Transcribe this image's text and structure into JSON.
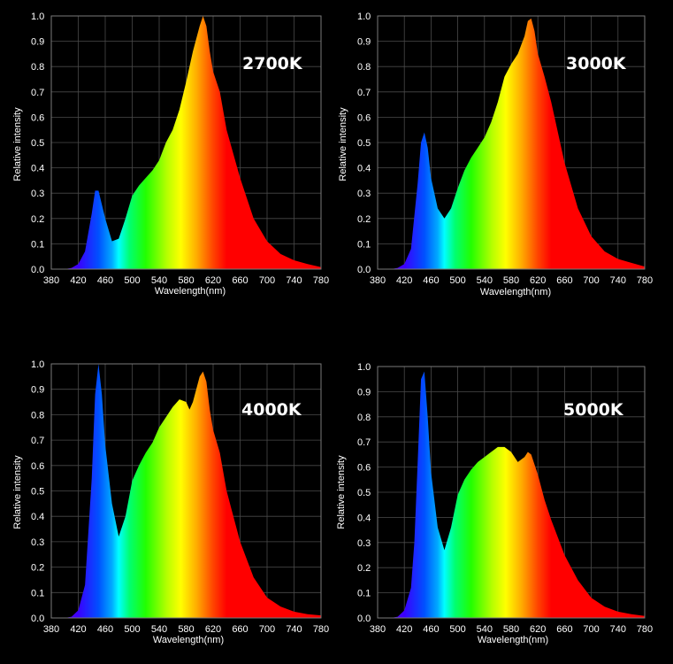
{
  "chart_data": [
    {
      "type": "area",
      "title": "2700K",
      "xlabel": "Wavelength(nm)",
      "ylabel": "Relative intensity",
      "xlim": [
        380,
        780
      ],
      "ylim": [
        0,
        1.0
      ],
      "x_ticks": [
        "380",
        "420",
        "460",
        "500",
        "540",
        "580",
        "620",
        "660",
        "700",
        "740",
        "780"
      ],
      "y_ticks": [
        "0.0",
        "0.1",
        "0.2",
        "0.3",
        "0.4",
        "0.5",
        "0.6",
        "0.7",
        "0.8",
        "0.9",
        "1.0"
      ],
      "grid": true,
      "x": [
        380,
        400,
        410,
        420,
        430,
        440,
        445,
        450,
        460,
        470,
        480,
        490,
        500,
        510,
        520,
        530,
        540,
        550,
        560,
        570,
        580,
        590,
        600,
        605,
        610,
        615,
        620,
        630,
        640,
        660,
        680,
        700,
        720,
        740,
        760,
        780
      ],
      "y": [
        0.0,
        0.0,
        0.005,
        0.02,
        0.07,
        0.22,
        0.31,
        0.31,
        0.2,
        0.11,
        0.12,
        0.2,
        0.29,
        0.33,
        0.36,
        0.39,
        0.43,
        0.5,
        0.55,
        0.63,
        0.74,
        0.86,
        0.96,
        1.0,
        0.96,
        0.86,
        0.78,
        0.7,
        0.55,
        0.36,
        0.2,
        0.11,
        0.06,
        0.035,
        0.02,
        0.008
      ]
    },
    {
      "type": "area",
      "title": "3000K",
      "xlabel": "Wavelength(nm)",
      "ylabel": "Relative intensity",
      "xlim": [
        380,
        780
      ],
      "ylim": [
        0,
        1.0
      ],
      "x_ticks": [
        "380",
        "420",
        "460",
        "500",
        "540",
        "580",
        "620",
        "660",
        "700",
        "740",
        "780"
      ],
      "y_ticks": [
        "0.0",
        "0.1",
        "0.2",
        "0.3",
        "0.4",
        "0.5",
        "0.6",
        "0.7",
        "0.8",
        "0.9",
        "1.0"
      ],
      "grid": true,
      "x": [
        380,
        400,
        410,
        420,
        430,
        440,
        445,
        450,
        455,
        460,
        470,
        480,
        490,
        500,
        510,
        520,
        530,
        540,
        550,
        560,
        570,
        580,
        590,
        600,
        605,
        610,
        615,
        620,
        630,
        640,
        660,
        680,
        700,
        720,
        740,
        760,
        780
      ],
      "y": [
        0.0,
        0.0,
        0.005,
        0.02,
        0.08,
        0.34,
        0.5,
        0.54,
        0.48,
        0.36,
        0.24,
        0.2,
        0.24,
        0.32,
        0.39,
        0.44,
        0.48,
        0.52,
        0.58,
        0.66,
        0.76,
        0.81,
        0.85,
        0.92,
        0.98,
        0.99,
        0.94,
        0.85,
        0.76,
        0.66,
        0.42,
        0.24,
        0.13,
        0.07,
        0.04,
        0.025,
        0.01
      ]
    },
    {
      "type": "area",
      "title": "4000K",
      "xlabel": "Wavelength(nm)",
      "ylabel": "Relative intensity",
      "xlim": [
        380,
        780
      ],
      "ylim": [
        0,
        1.0
      ],
      "x_ticks": [
        "380",
        "420",
        "460",
        "500",
        "540",
        "580",
        "620",
        "660",
        "700",
        "740",
        "780"
      ],
      "y_ticks": [
        "0.0",
        "0.1",
        "0.2",
        "0.3",
        "0.4",
        "0.5",
        "0.6",
        "0.7",
        "0.8",
        "0.9",
        "1.0"
      ],
      "grid": true,
      "x": [
        380,
        400,
        410,
        420,
        430,
        440,
        445,
        450,
        455,
        460,
        470,
        480,
        490,
        500,
        510,
        520,
        530,
        540,
        550,
        560,
        570,
        580,
        585,
        590,
        600,
        605,
        610,
        615,
        620,
        630,
        640,
        660,
        680,
        700,
        720,
        740,
        760,
        780
      ],
      "y": [
        0.0,
        0.0,
        0.005,
        0.03,
        0.13,
        0.55,
        0.88,
        1.0,
        0.88,
        0.68,
        0.45,
        0.32,
        0.4,
        0.54,
        0.6,
        0.65,
        0.69,
        0.75,
        0.79,
        0.83,
        0.86,
        0.85,
        0.82,
        0.85,
        0.95,
        0.97,
        0.93,
        0.82,
        0.74,
        0.65,
        0.5,
        0.3,
        0.16,
        0.08,
        0.045,
        0.025,
        0.015,
        0.01
      ]
    },
    {
      "type": "area",
      "title": "5000K",
      "xlabel": "Wavelength(nm)",
      "ylabel": "Relative intensity",
      "xlim": [
        380,
        780
      ],
      "ylim": [
        0,
        1.0
      ],
      "x_ticks": [
        "380",
        "420",
        "460",
        "500",
        "540",
        "580",
        "620",
        "660",
        "700",
        "740",
        "780"
      ],
      "y_ticks": [
        "0.0",
        "0.1",
        "0.2",
        "0.3",
        "0.4",
        "0.5",
        "0.6",
        "0.7",
        "0.8",
        "0.9",
        "1.0"
      ],
      "grid": true,
      "x": [
        380,
        400,
        410,
        420,
        430,
        435,
        440,
        445,
        450,
        455,
        460,
        470,
        480,
        490,
        500,
        510,
        520,
        530,
        540,
        550,
        560,
        570,
        580,
        590,
        600,
        605,
        610,
        620,
        630,
        640,
        660,
        680,
        700,
        720,
        740,
        760,
        780
      ],
      "y": [
        0.0,
        0.0,
        0.005,
        0.03,
        0.12,
        0.3,
        0.62,
        0.95,
        0.98,
        0.8,
        0.58,
        0.36,
        0.27,
        0.36,
        0.49,
        0.55,
        0.59,
        0.62,
        0.64,
        0.66,
        0.68,
        0.68,
        0.66,
        0.62,
        0.64,
        0.66,
        0.65,
        0.57,
        0.47,
        0.39,
        0.25,
        0.15,
        0.08,
        0.045,
        0.025,
        0.015,
        0.008
      ]
    }
  ]
}
